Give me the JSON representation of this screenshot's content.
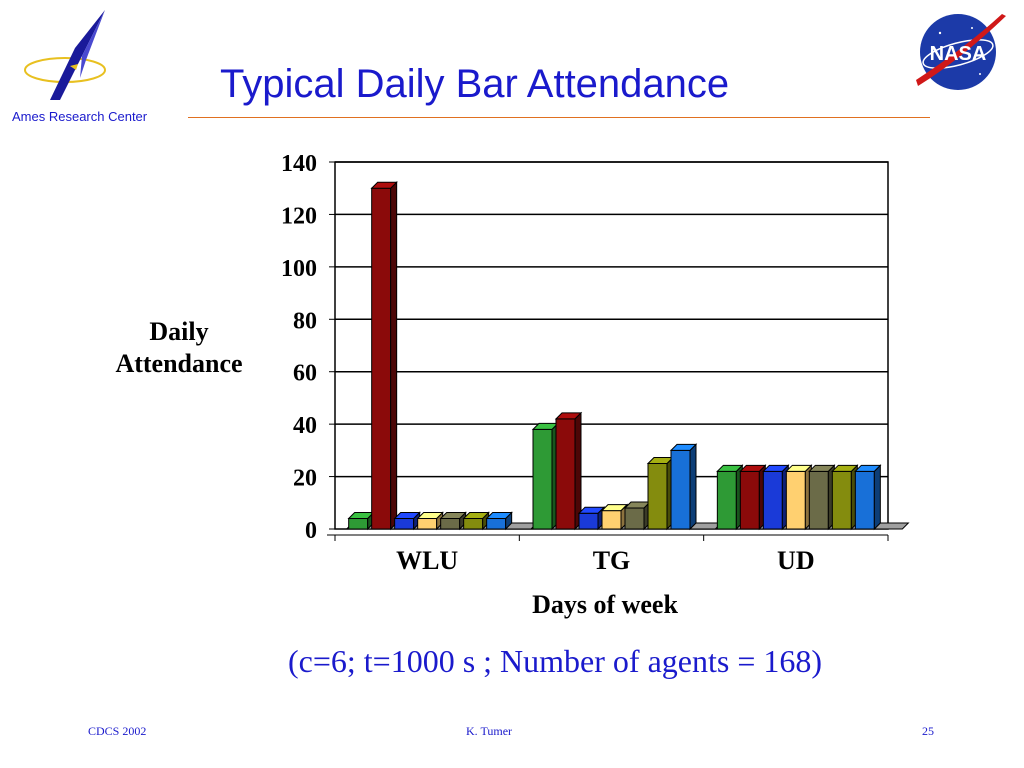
{
  "slide": {
    "title": "Typical Daily Bar Attendance",
    "org": "Ames Research Center",
    "logo_text": "NASA",
    "footnote": "(c=6; t=1000 s ; Number of agents = 168)",
    "footer_left": "CDCS 2002",
    "footer_center": "K. Tumer",
    "footer_right": "25",
    "accent_color": "#1a1acc",
    "rule_color": "#e07020"
  },
  "chart_data": {
    "type": "bar",
    "title": "",
    "xlabel": "Days of week",
    "ylabel": "Daily Attendance",
    "ylim": [
      0,
      140
    ],
    "yticks": [
      0,
      20,
      40,
      60,
      80,
      100,
      120,
      140
    ],
    "categories": [
      "WLU",
      "TG",
      "UD"
    ],
    "grid": true,
    "legend": "none",
    "style": "3d",
    "series": [
      {
        "color": "#2e9a35",
        "values": [
          4,
          38,
          22
        ]
      },
      {
        "color": "#8b0a0a",
        "values": [
          130,
          42,
          22
        ]
      },
      {
        "color": "#1a3ad8",
        "values": [
          4,
          6,
          22
        ]
      },
      {
        "color": "#ffd070",
        "values": [
          4,
          7,
          22
        ]
      },
      {
        "color": "#6b6b48",
        "values": [
          4,
          8,
          22
        ]
      },
      {
        "color": "#848c0e",
        "values": [
          4,
          25,
          22
        ]
      },
      {
        "color": "#1870d8",
        "values": [
          4,
          30,
          22
        ]
      }
    ]
  }
}
